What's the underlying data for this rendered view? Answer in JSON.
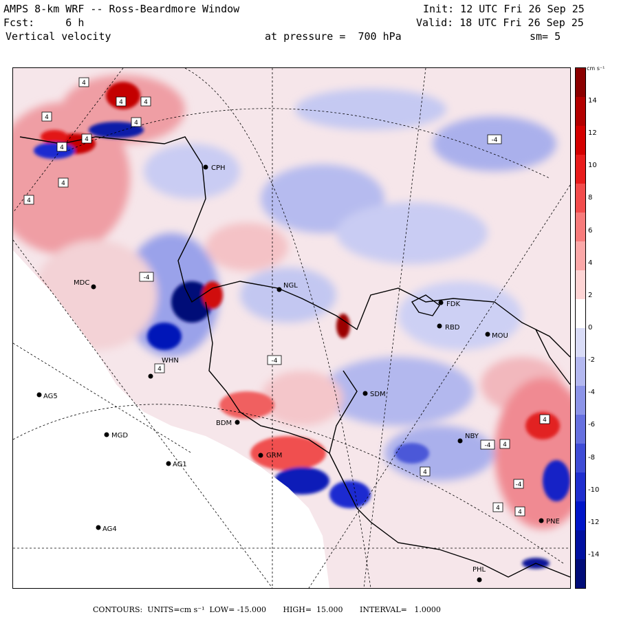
{
  "header": {
    "title": "AMPS 8-km WRF -- Ross-Beardmore Window",
    "forecast": "Fcst:     6 h",
    "variable": "Vertical velocity",
    "init": "Init: 12 UTC Fri 26 Sep 25",
    "valid": "Valid: 18 UTC Fri 26 Sep 25",
    "pressure": "at pressure =  700 hPa",
    "smoothing": "sm= 5"
  },
  "colorbar": {
    "units_label": "cm s⁻¹",
    "ticks": [
      "14",
      "12",
      "10",
      "8",
      "6",
      "4",
      "2",
      "0",
      "-2",
      "-4",
      "-6",
      "-8",
      "-10",
      "-12",
      "-14"
    ],
    "colors": [
      "#8b0000",
      "#b30000",
      "#d40000",
      "#e81c1c",
      "#f24c4c",
      "#f77b7b",
      "#fba8a8",
      "#fdd4d4",
      "#ffffff",
      "#d9dcf7",
      "#b3b8f0",
      "#8c94e8",
      "#6670df",
      "#3f4cd6",
      "#1f2ecf",
      "#0015c8",
      "#0010a0",
      "#000c78"
    ]
  },
  "stations": [
    {
      "id": "CPH"
    },
    {
      "id": "MDC"
    },
    {
      "id": "NGL"
    },
    {
      "id": "FDK"
    },
    {
      "id": "RBD"
    },
    {
      "id": "MOU"
    },
    {
      "id": "WHN"
    },
    {
      "id": "AG5"
    },
    {
      "id": "BDM"
    },
    {
      "id": "SDM"
    },
    {
      "id": "MGD"
    },
    {
      "id": "NBY"
    },
    {
      "id": "AG1"
    },
    {
      "id": "GRM"
    },
    {
      "id": "AG4"
    },
    {
      "id": "PHL"
    },
    {
      "id": "PNE"
    }
  ],
  "contour_labels": [
    "4",
    "4",
    "4",
    "4",
    "4",
    "4",
    "4",
    "4",
    "4",
    "-4",
    "-4",
    "-4",
    "-4",
    "4",
    "4",
    "4",
    "-4",
    "4",
    "4",
    "4"
  ],
  "footer": {
    "text": "CONTOURS:  UNITS=cm s⁻¹  LOW= -15.000       HIGH=  15.000       INTERVAL=   1.0000"
  }
}
